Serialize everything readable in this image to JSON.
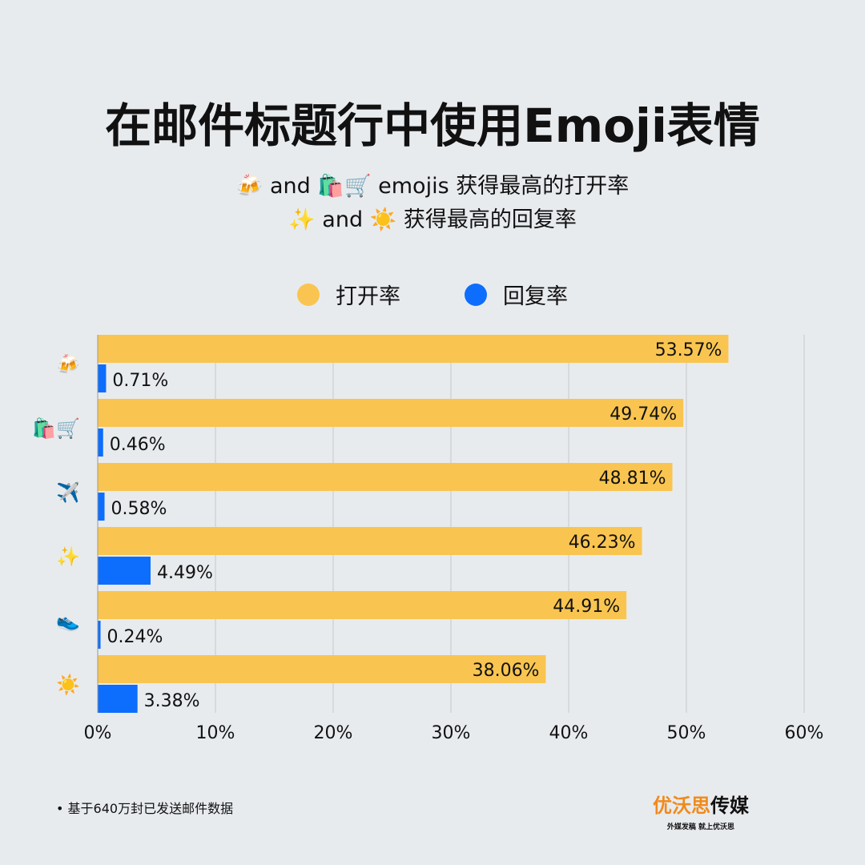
{
  "title": "在邮件标题行中使用Emoji表情",
  "subtitle_line1": "🍻 and 🛍️🛒 emojis 获得最高的打开率",
  "subtitle_line2": "✨ and ☀️ 获得最高的回复率",
  "footnote": "• 基于640万封已发送邮件数据",
  "logo": {
    "main_orange": "优沃思",
    "main_black": "传媒",
    "tagline": "外媒发稿 就上优沃思"
  },
  "chart_data": {
    "type": "bar",
    "orientation": "horizontal",
    "categories": [
      "🍻",
      "🛍️🛒",
      "✈️",
      "✨",
      "👟",
      "☀️"
    ],
    "series": [
      {
        "name": "打开率",
        "color": "#f9c550",
        "values": [
          53.57,
          49.74,
          48.81,
          46.23,
          44.91,
          38.06
        ]
      },
      {
        "name": "回复率",
        "color": "#0d6efd",
        "values": [
          0.71,
          0.46,
          0.58,
          4.49,
          0.24,
          3.38
        ]
      }
    ],
    "xlim": [
      0,
      60
    ],
    "xticks": [
      "0%",
      "10%",
      "20%",
      "30%",
      "40%",
      "50%",
      "60%"
    ],
    "grid": true,
    "legend": "top-center",
    "value_suffix": "%"
  }
}
